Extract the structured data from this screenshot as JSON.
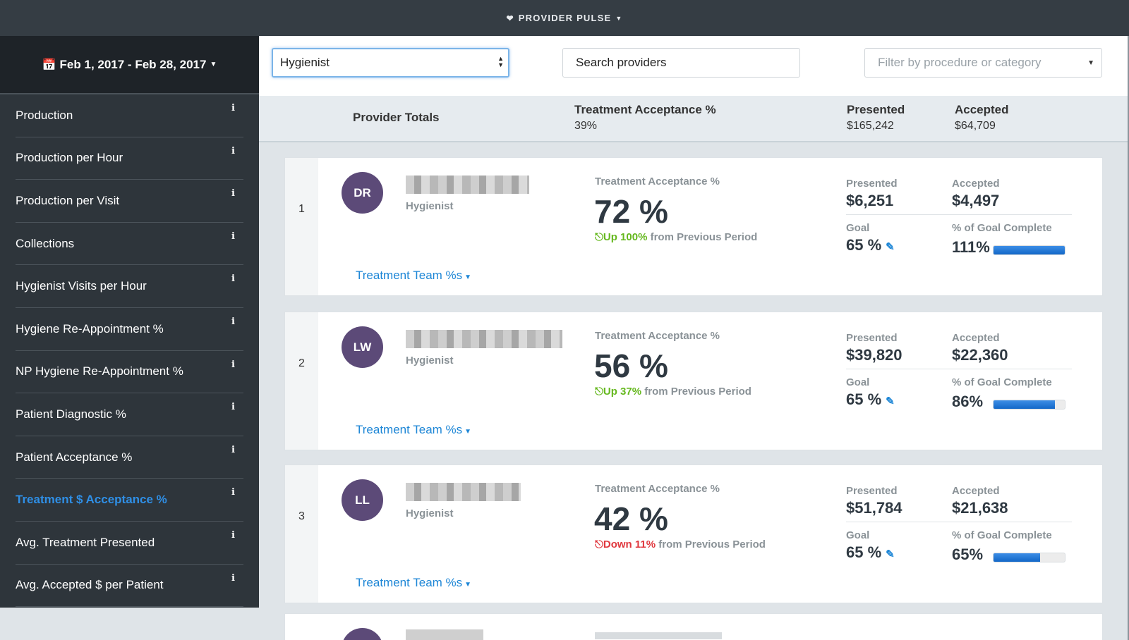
{
  "app": {
    "title": "PROVIDER PULSE"
  },
  "sidebar": {
    "date_range": "Feb 1, 2017 - Feb 28, 2017",
    "items": [
      {
        "label": "Production"
      },
      {
        "label": "Production per Hour"
      },
      {
        "label": "Production per Visit"
      },
      {
        "label": "Collections"
      },
      {
        "label": "Hygienist Visits per Hour"
      },
      {
        "label": "Hygiene Re-Appointment %"
      },
      {
        "label": "NP Hygiene Re-Appointment %"
      },
      {
        "label": "Patient Diagnostic %"
      },
      {
        "label": "Patient Acceptance %"
      },
      {
        "label": "Treatment $ Acceptance %",
        "active": true
      },
      {
        "label": "Avg. Treatment Presented"
      },
      {
        "label": "Avg. Accepted $ per Patient"
      }
    ],
    "info_glyph": "i"
  },
  "toolbar": {
    "role_value": "Hygienist",
    "search_value": "Search providers",
    "filter_placeholder": "Filter by procedure or category"
  },
  "totals": {
    "label": "Provider Totals",
    "ta_label": "Treatment Acceptance %",
    "ta_value": "39%",
    "presented_label": "Presented",
    "presented_value": "$165,242",
    "accepted_label": "Accepted",
    "accepted_value": "$64,709"
  },
  "labels": {
    "ta": "Treatment Acceptance %",
    "presented": "Presented",
    "accepted": "Accepted",
    "goal": "Goal",
    "goal_complete": "% of Goal Complete",
    "team_link": "Treatment Team %s",
    "from_prev": "from Previous Period"
  },
  "providers": [
    {
      "rank": "1",
      "initials": "DR",
      "role": "Hygienist",
      "ta": "72 %",
      "trend_dir": "up",
      "trend": "Up 100%",
      "presented": "$6,251",
      "accepted": "$4,497",
      "goal": "65 %",
      "goal_complete": "111%",
      "goal_fraction": 1.0
    },
    {
      "rank": "2",
      "initials": "LW",
      "role": "Hygienist",
      "ta": "56 %",
      "trend_dir": "up",
      "trend": "Up 37%",
      "presented": "$39,820",
      "accepted": "$22,360",
      "goal": "65 %",
      "goal_complete": "86%",
      "goal_fraction": 0.86
    },
    {
      "rank": "3",
      "initials": "LL",
      "role": "Hygienist",
      "ta": "42 %",
      "trend_dir": "down",
      "trend": "Down 11%",
      "presented": "$51,784",
      "accepted": "$21,638",
      "goal": "65 %",
      "goal_complete": "65%",
      "goal_fraction": 0.65
    }
  ],
  "colors": {
    "accent": "#1d86d6",
    "up": "#65b81e",
    "down": "#e0383e",
    "avatar": "#5c4a78"
  }
}
